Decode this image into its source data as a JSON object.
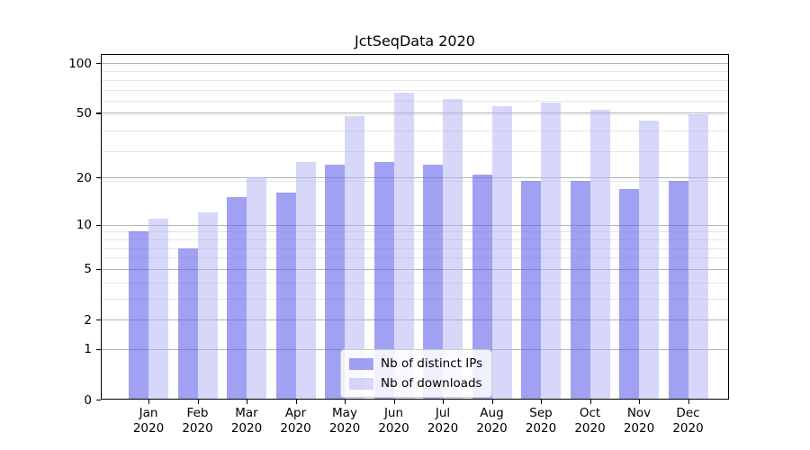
{
  "chart_data": {
    "type": "bar",
    "title": "JctSeqData 2020",
    "categories": [
      "Jan 2020",
      "Feb 2020",
      "Mar 2020",
      "Apr 2020",
      "May 2020",
      "Jun 2020",
      "Jul 2020",
      "Aug 2020",
      "Sep 2020",
      "Oct 2020",
      "Nov 2020",
      "Dec 2020"
    ],
    "series": [
      {
        "name": "Nb of distinct IPs",
        "color": "rgba(103,103,236,0.62)",
        "solid_color": "#a9a9f3",
        "values": [
          9,
          7,
          15,
          16,
          24,
          25,
          24,
          21,
          19,
          19,
          17,
          19
        ]
      },
      {
        "name": "Nb of downloads",
        "color": "rgba(178,178,245,0.52)",
        "solid_color": "#d9d9f8",
        "values": [
          11,
          12,
          20,
          25,
          48,
          66,
          61,
          55,
          58,
          52,
          45,
          49
        ]
      }
    ],
    "yscale": "log1p",
    "yticks": [
      0,
      1,
      2,
      5,
      10,
      20,
      50,
      100
    ],
    "minor_grid_values": [
      3,
      4,
      6,
      7,
      8,
      9,
      19,
      29,
      39,
      49,
      59,
      69,
      79,
      89
    ],
    "ylim": [
      0,
      113
    ],
    "xlabel": "",
    "ylabel": "",
    "grid": "on",
    "legend_position": "lower-center",
    "colors": {
      "major_grid": "#b4b4b4",
      "minor_grid": "#e6e6e6",
      "axis": "#000000",
      "background": "#ffffff"
    }
  },
  "legend": {
    "entry_ips": "Nb of distinct IPs",
    "entry_downloads": "Nb of downloads"
  }
}
